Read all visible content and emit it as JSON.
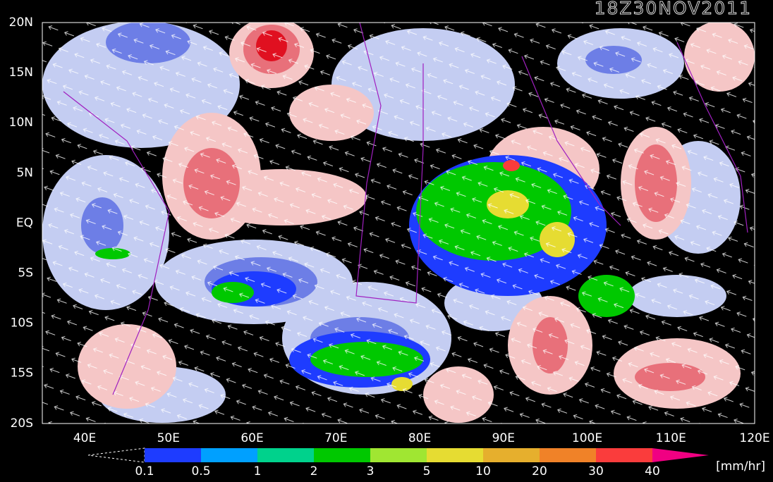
{
  "title": "18Z30NOV2011",
  "lat_labels": [
    "20N",
    "15N",
    "10N",
    "5N",
    "EQ",
    "5S",
    "10S",
    "15S",
    "20S"
  ],
  "lon_labels": [
    "40E",
    "50E",
    "60E",
    "70E",
    "80E",
    "90E",
    "100E",
    "110E",
    "120E"
  ],
  "colorbar": {
    "labels": [
      "0.1",
      "0.5",
      "1",
      "2",
      "3",
      "5",
      "10",
      "20",
      "30",
      "40"
    ],
    "colors": [
      "#1e3cff",
      "#00a0ff",
      "#00d28c",
      "#00c800",
      "#a0e632",
      "#e6dc32",
      "#e6af2d",
      "#f08228",
      "#fa3c3c",
      "#f00082"
    ],
    "unit": "[mm/hr]"
  }
}
